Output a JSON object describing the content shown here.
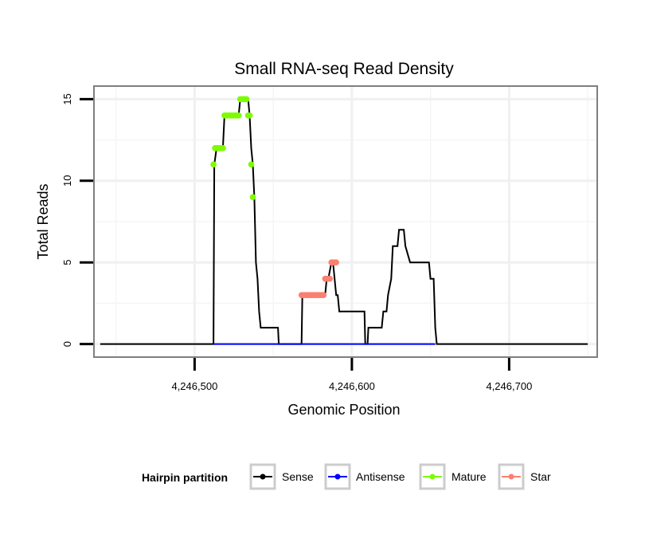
{
  "chart_data": {
    "type": "line",
    "title": "Small RNA-seq Read Density",
    "xlabel": "Genomic Position",
    "ylabel": "Total Reads",
    "xlim": [
      4246436,
      4246756
    ],
    "ylim": [
      -0.8,
      15.8
    ],
    "xticks": [
      4246500,
      4246600,
      4246700
    ],
    "xtick_labels": [
      "4,246,500",
      "4,246,600",
      "4,246,700"
    ],
    "yticks": [
      0,
      5,
      10,
      15
    ],
    "ytick_labels": [
      "0",
      "5",
      "10",
      "15"
    ],
    "grid": true,
    "legend": {
      "title": "Hairpin partition",
      "position": "bottom",
      "entries": [
        {
          "name": "Sense",
          "color": "#000000"
        },
        {
          "name": "Antisense",
          "color": "#0000ff"
        },
        {
          "name": "Mature",
          "color": "#7cfc00"
        },
        {
          "name": "Star",
          "color": "#fa8072"
        }
      ]
    },
    "series": [
      {
        "name": "Sense",
        "color": "#000000",
        "x": [
          4246440,
          4246512,
          4246512.5,
          4246514,
          4246518,
          4246519,
          4246528,
          4246529,
          4246531,
          4246534,
          4246535,
          4246536,
          4246537,
          4246538,
          4246539,
          4246540,
          4246541,
          4246542,
          4246543,
          4246553,
          4246553.5,
          4246568,
          4246568.5,
          4246582,
          4246583,
          4246584,
          4246585,
          4246587,
          4246588,
          4246589,
          4246590,
          4246591,
          4246592,
          4246593,
          4246601,
          4246601.5,
          4246608,
          4246608.5,
          4246610,
          4246610.5,
          4246612,
          4246613,
          4246619,
          4246620,
          4246622,
          4246623,
          4246625,
          4246626,
          4246627,
          4246629,
          4246630,
          4246633,
          4246634,
          4246637,
          4246640,
          4246647,
          4246649,
          4246650,
          4246652,
          4246653,
          4246654,
          4246750
        ],
        "y": [
          0,
          0,
          11,
          12,
          12,
          14,
          14,
          15,
          15,
          15,
          14,
          12,
          11,
          9,
          5,
          4,
          2,
          1,
          1,
          1,
          0,
          0,
          3,
          3,
          3,
          4,
          4,
          5,
          5,
          4,
          3,
          3,
          2,
          2,
          2,
          2,
          2,
          0,
          0,
          1,
          1,
          1,
          1,
          2,
          2,
          3,
          4,
          6,
          6,
          6,
          7,
          7,
          6,
          5,
          5,
          5,
          5,
          4,
          4,
          1,
          0,
          0
        ]
      },
      {
        "name": "Antisense",
        "color": "#0000ff",
        "x": [
          4246512,
          4246653
        ],
        "y": [
          0,
          0
        ]
      },
      {
        "name": "Mature",
        "color": "#7cfc00",
        "x": [
          4246512,
          4246513,
          4246514,
          4246515,
          4246516,
          4246517,
          4246518,
          4246519,
          4246520,
          4246521,
          4246522,
          4246523,
          4246524,
          4246525,
          4246526,
          4246527,
          4246528,
          4246529,
          4246530,
          4246531,
          4246532,
          4246533,
          4246534,
          4246535,
          4246536,
          4246537
        ],
        "y": [
          11,
          12,
          12,
          12,
          12,
          12,
          12,
          14,
          14,
          14,
          14,
          14,
          14,
          14,
          14,
          14,
          14,
          15,
          15,
          15,
          15,
          15,
          14,
          14,
          11,
          9
        ]
      },
      {
        "name": "Star",
        "color": "#fa8072",
        "x": [
          4246568,
          4246569,
          4246570,
          4246571,
          4246572,
          4246573,
          4246574,
          4246575,
          4246576,
          4246577,
          4246578,
          4246579,
          4246580,
          4246581,
          4246582,
          4246583,
          4246584,
          4246585,
          4246586,
          4246587,
          4246588,
          4246589,
          4246590
        ],
        "y": [
          3,
          3,
          3,
          3,
          3,
          3,
          3,
          3,
          3,
          3,
          3,
          3,
          3,
          3,
          3,
          4,
          4,
          4,
          4,
          5,
          5,
          5,
          5
        ]
      }
    ]
  }
}
